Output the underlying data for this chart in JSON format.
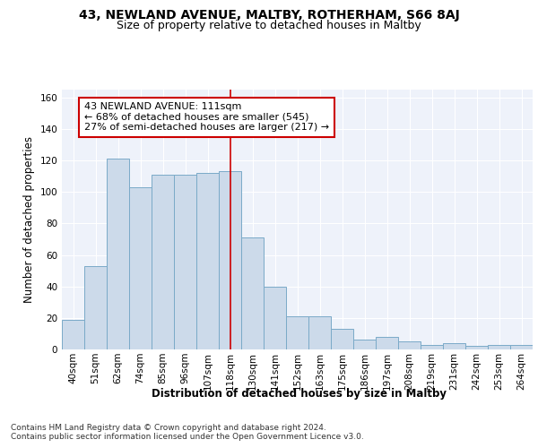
{
  "title_line1": "43, NEWLAND AVENUE, MALTBY, ROTHERHAM, S66 8AJ",
  "title_line2": "Size of property relative to detached houses in Maltby",
  "xlabel": "Distribution of detached houses by size in Maltby",
  "ylabel": "Number of detached properties",
  "categories": [
    "40sqm",
    "51sqm",
    "62sqm",
    "74sqm",
    "85sqm",
    "96sqm",
    "107sqm",
    "118sqm",
    "130sqm",
    "141sqm",
    "152sqm",
    "163sqm",
    "175sqm",
    "186sqm",
    "197sqm",
    "208sqm",
    "219sqm",
    "231sqm",
    "242sqm",
    "253sqm",
    "264sqm"
  ],
  "values": [
    19,
    53,
    121,
    103,
    111,
    111,
    112,
    113,
    71,
    40,
    21,
    21,
    13,
    6,
    8,
    5,
    3,
    4,
    2,
    3,
    3
  ],
  "bar_color": "#ccdaea",
  "bar_edge_color": "#7aaac8",
  "highlight_bar_index": 7,
  "highlight_line_color": "#cc0000",
  "annotation_text": "43 NEWLAND AVENUE: 111sqm\n← 68% of detached houses are smaller (545)\n27% of semi-detached houses are larger (217) →",
  "annotation_box_color": "#ffffff",
  "annotation_border_color": "#cc0000",
  "ylim": [
    0,
    165
  ],
  "yticks": [
    0,
    20,
    40,
    60,
    80,
    100,
    120,
    140,
    160
  ],
  "plot_bg_color": "#eef2fa",
  "footer_text": "Contains HM Land Registry data © Crown copyright and database right 2024.\nContains public sector information licensed under the Open Government Licence v3.0.",
  "title_fontsize": 10,
  "subtitle_fontsize": 9,
  "axis_label_fontsize": 8.5,
  "tick_fontsize": 7.5,
  "annotation_fontsize": 8,
  "footer_fontsize": 6.5
}
